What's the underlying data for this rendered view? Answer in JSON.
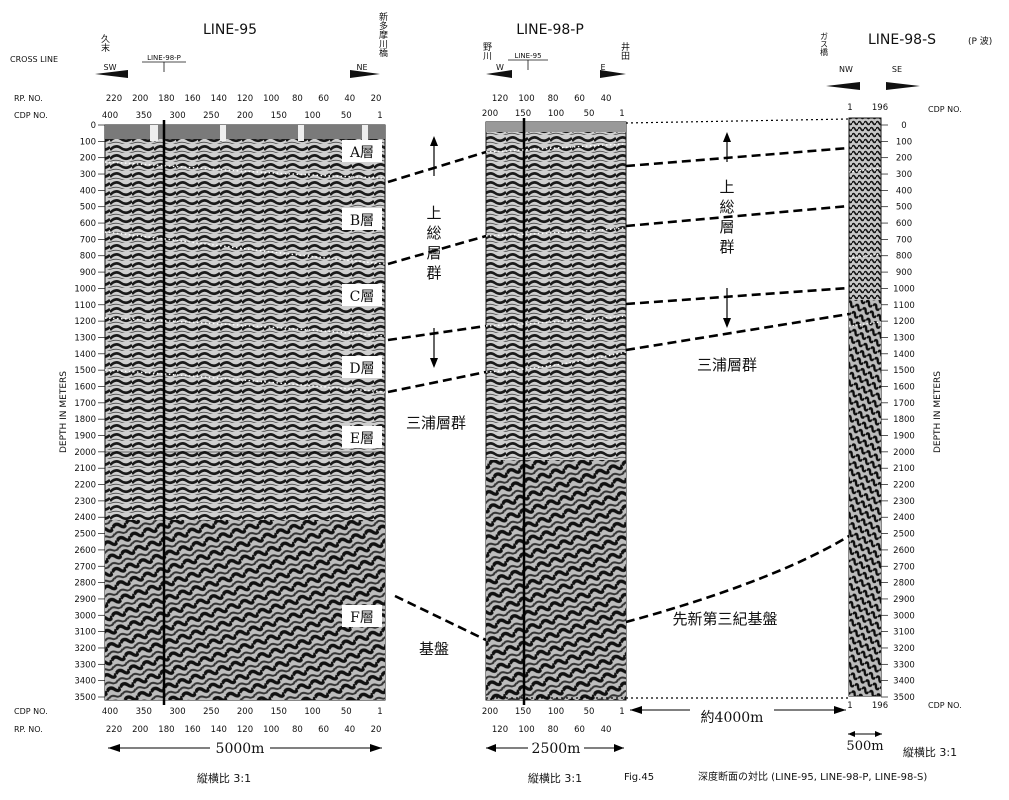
{
  "titles": {
    "line95": "LINE-95",
    "line98p": "LINE-98-P",
    "line98s": "LINE-98-S",
    "line98s_note": "(P 波)"
  },
  "header_labels": {
    "cross_line": "CROSS LINE",
    "rp_no": "RP. NO.",
    "cdp_no": "CDP NO.",
    "depth_axis": "DEPTH IN METERS"
  },
  "places": {
    "kuse": "久末",
    "shintama": "新多摩川橋",
    "nogawa": "野川",
    "ida": "井田",
    "gasubashi": "ガス橋"
  },
  "directions": {
    "sw": "SW",
    "ne": "NE",
    "w": "W",
    "e": "E",
    "nw": "NW",
    "se": "SE"
  },
  "cross_refs": {
    "on95": "LINE-98-P",
    "on98p": "LINE-95"
  },
  "depth_ticks": [
    "0",
    "100",
    "200",
    "300",
    "400",
    "500",
    "600",
    "700",
    "800",
    "900",
    "1000",
    "1100",
    "1200",
    "1300",
    "1400",
    "1500",
    "1600",
    "1700",
    "1800",
    "1900",
    "2000",
    "2100",
    "2200",
    "2300",
    "2400",
    "2500",
    "2600",
    "2700",
    "2800",
    "2900",
    "3000",
    "3100",
    "3200",
    "3300",
    "3400",
    "3500"
  ],
  "line95_cdp": [
    "400",
    "350",
    "300",
    "250",
    "200",
    "150",
    "100",
    "50",
    "1"
  ],
  "line95_rp": [
    "220",
    "200",
    "180",
    "160",
    "140",
    "120",
    "100",
    "80",
    "60",
    "40",
    "20"
  ],
  "line98p_cdp": [
    "200",
    "150",
    "100",
    "50",
    "1"
  ],
  "line98p_rp": [
    "120",
    "100",
    "80",
    "60",
    "40"
  ],
  "line98s_cdp": [
    "1",
    "196"
  ],
  "layers": {
    "a": "A層",
    "b": "B層",
    "c": "C層",
    "d": "D層",
    "e": "E層",
    "f": "F層"
  },
  "groups": {
    "kazusa": [
      "上",
      "総",
      "層",
      "群"
    ],
    "miura_mid": "三浦層群",
    "miura_right": "三浦層群",
    "kiban": "基盤",
    "pre_neogene": "先新第三紀基盤"
  },
  "scales": {
    "line95": "5000m",
    "line98p": "2500m",
    "distance": "約4000m",
    "line98s": "500m"
  },
  "ratios": {
    "r1": "縦横比 3:1",
    "r2": "縦横比 3:1",
    "r3": "縦横比 3:1"
  },
  "caption": {
    "fig": "Fig.45",
    "text": "深度断面の対比 (LINE-95, LINE-98-P, LINE-98-S)"
  }
}
